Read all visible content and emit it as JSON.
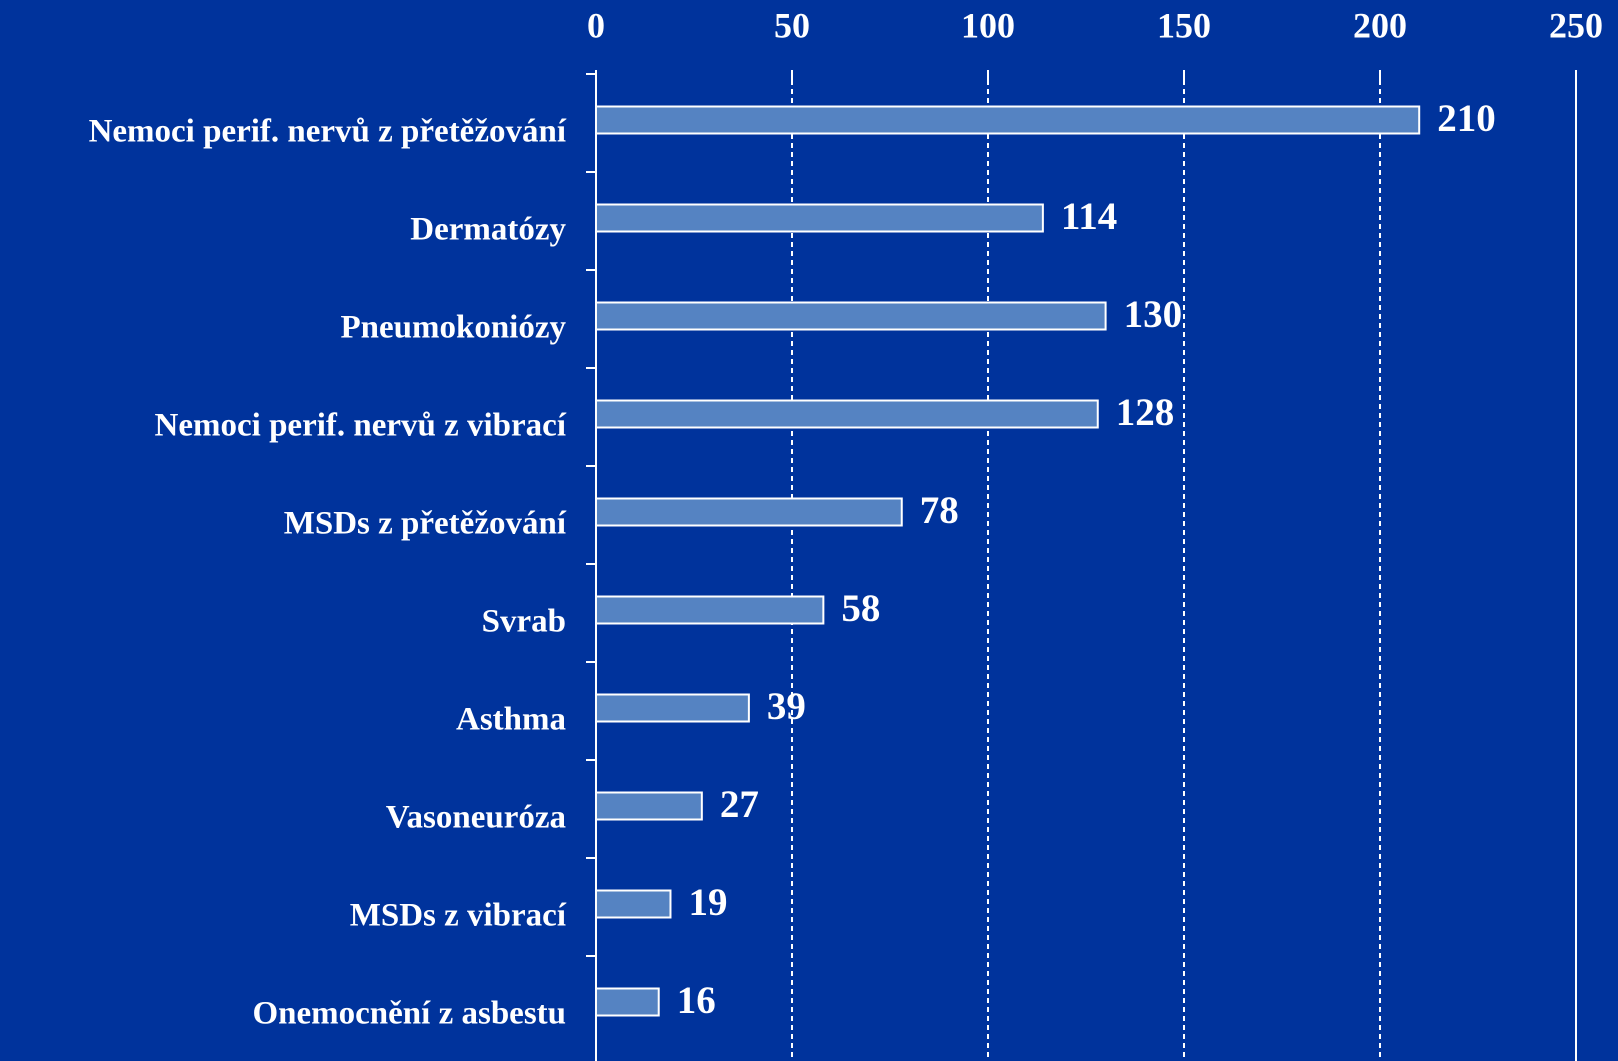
{
  "chart_data": {
    "type": "hbar",
    "categories": [
      "Nemoci perif. nervů z přetěžování",
      "Dermatózy",
      "Pneumokoniózy",
      "Nemoci perif. nervů z vibrací",
      "MSDs z přetěžování",
      "Svrab",
      "Asthma",
      "Vasoneuróza",
      "MSDs z vibrací",
      "Onemocnění z asbestu"
    ],
    "values": [
      210,
      114,
      130,
      128,
      78,
      58,
      39,
      27,
      19,
      16
    ],
    "color": "#5583c2",
    "xlim": [
      0,
      250
    ],
    "xticks": [
      0,
      50,
      100,
      150,
      200,
      250
    ],
    "grid": true
  }
}
